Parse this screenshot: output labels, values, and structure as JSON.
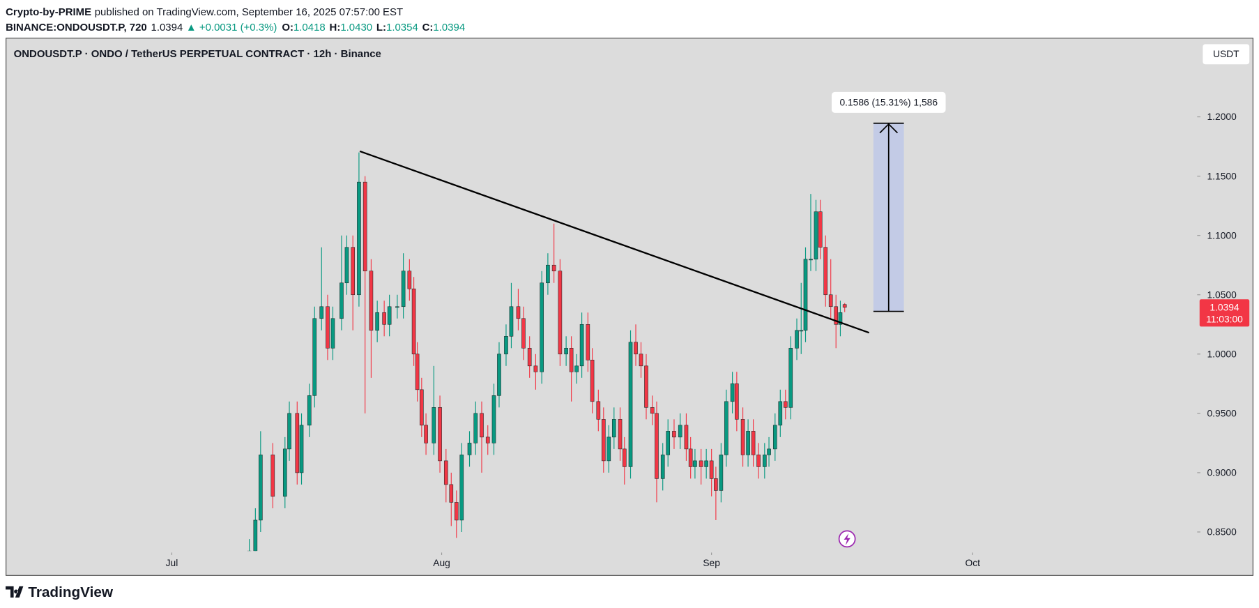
{
  "header": {
    "author": "Crypto-by-PRIME",
    "published": "published on TradingView.com, September 16, 2025 07:57:00 EST",
    "symbol": "BINANCE:ONDOUSDT.P, 720",
    "last": "1.0394",
    "change": "▲ +0.0031 (+0.3%)",
    "ohlc": [
      {
        "label": "O:",
        "value": "1.0418"
      },
      {
        "label": "H:",
        "value": "1.0430"
      },
      {
        "label": "L:",
        "value": "1.0354"
      },
      {
        "label": "C:",
        "value": "1.0394"
      }
    ]
  },
  "chart_data": {
    "type": "candlestick",
    "title": "ONDOUSDT.P · ONDO / TetherUS PERPETUAL CONTRACT · 12h · Binance",
    "currency": "USDT",
    "x": [
      8.9,
      9.6,
      10.2,
      11.6,
      13.0,
      13.5,
      14.4,
      14.9,
      15.8,
      16.4,
      17.2,
      17.9,
      18.5,
      19.5,
      20.1,
      20.8,
      21.5,
      22.2,
      22.9,
      23.6,
      24.4,
      25.0,
      25.9,
      26.6,
      27.3,
      27.8,
      28.2,
      28.7,
      29.2,
      30.1,
      30.8,
      31.5,
      32.1,
      32.7,
      33.3,
      34.2,
      34.9,
      35.6,
      36.3,
      37.0,
      37.6,
      38.4,
      39.0,
      39.8,
      40.4,
      41.1,
      41.8,
      42.5,
      43.2,
      43.9,
      44.6,
      45.3,
      45.9,
      46.5,
      47.1,
      47.8,
      48.3,
      49.0,
      49.6,
      50.2,
      50.8,
      51.5,
      52.0,
      52.7,
      53.3,
      53.9,
      54.5,
      55.2,
      55.7,
      56.4,
      57.0,
      57.7,
      58.4,
      59.1,
      59.6,
      60.1,
      60.8,
      61.4,
      62.0,
      62.5,
      63.1,
      63.7,
      64.4,
      64.9,
      65.6,
      66.2,
      66.8,
      67.4,
      68.1,
      68.6,
      69.3,
      69.9,
      70.5,
      71.1,
      71.8,
      72.3,
      72.8,
      73.4,
      74.0,
      74.5,
      75.1,
      75.7,
      76.3,
      76.8,
      77.3
    ],
    "open": [
      0.82,
      0.834,
      0.86,
      0.915,
      0.88,
      0.92,
      0.95,
      0.9,
      0.94,
      0.965,
      1.03,
      1.04,
      1.005,
      1.03,
      1.06,
      1.09,
      1.05,
      1.145,
      1.07,
      1.02,
      1.035,
      1.025,
      1.04,
      1.04,
      1.07,
      1.055,
      1.0,
      0.97,
      0.94,
      0.925,
      0.955,
      0.91,
      0.89,
      0.875,
      0.86,
      0.915,
      0.925,
      0.95,
      0.93,
      0.925,
      0.965,
      1.0,
      1.015,
      1.04,
      1.03,
      1.005,
      0.99,
      0.985,
      1.06,
      1.075,
      1.07,
      1.0,
      1.005,
      0.985,
      0.99,
      1.025,
      0.995,
      0.96,
      0.945,
      0.91,
      0.93,
      0.945,
      0.92,
      0.905,
      1.01,
      1.0,
      0.99,
      0.955,
      0.95,
      0.895,
      0.915,
      0.935,
      0.93,
      0.94,
      0.92,
      0.905,
      0.91,
      0.905,
      0.91,
      0.895,
      0.885,
      0.915,
      0.96,
      0.975,
      0.945,
      0.915,
      0.935,
      0.915,
      0.905,
      0.915,
      0.92,
      0.94,
      0.96,
      0.955,
      1.005,
      1.02,
      1.02,
      1.08,
      1.08,
      1.12,
      1.09,
      1.05,
      1.04,
      1.025,
      1.0418
    ],
    "high": [
      0.844,
      0.87,
      0.935,
      0.925,
      0.93,
      0.96,
      0.96,
      0.95,
      0.975,
      1.04,
      1.09,
      1.05,
      1.04,
      1.1,
      1.1,
      1.1,
      1.17,
      1.15,
      1.08,
      1.045,
      1.045,
      1.05,
      1.05,
      1.085,
      1.08,
      1.065,
      1.01,
      0.98,
      0.95,
      0.99,
      0.965,
      0.92,
      0.9,
      0.885,
      0.925,
      0.935,
      0.96,
      0.96,
      0.94,
      0.975,
      1.01,
      1.025,
      1.06,
      1.055,
      1.04,
      1.015,
      1.0,
      1.07,
      1.085,
      1.11,
      1.08,
      1.015,
      1.015,
      1.0,
      1.035,
      1.035,
      1.005,
      0.97,
      0.955,
      0.94,
      0.955,
      0.955,
      0.93,
      1.02,
      1.025,
      1.01,
      1.0,
      0.965,
      0.96,
      0.925,
      0.945,
      0.945,
      0.95,
      0.95,
      0.93,
      0.92,
      0.92,
      0.92,
      0.92,
      0.905,
      0.925,
      0.97,
      0.985,
      0.985,
      0.955,
      0.945,
      0.945,
      0.925,
      0.925,
      0.93,
      0.95,
      0.97,
      0.97,
      1.015,
      1.03,
      1.06,
      1.09,
      1.135,
      1.13,
      1.13,
      1.1,
      1.08,
      1.05,
      1.045,
      1.043
    ],
    "low": [
      0.81,
      0.824,
      0.85,
      0.87,
      0.87,
      0.91,
      0.89,
      0.89,
      0.93,
      0.955,
      1.02,
      0.995,
      0.995,
      1.02,
      1.05,
      1.02,
      1.04,
      0.95,
      0.98,
      1.01,
      1.015,
      1.015,
      1.03,
      1.03,
      1.045,
      0.99,
      0.96,
      0.93,
      0.915,
      0.915,
      0.9,
      0.875,
      0.855,
      0.845,
      0.85,
      0.905,
      0.915,
      0.9,
      0.915,
      0.915,
      0.955,
      0.99,
      1.005,
      1.02,
      0.995,
      0.98,
      0.97,
      0.975,
      1.05,
      1.06,
      0.99,
      0.99,
      0.96,
      0.975,
      0.98,
      0.985,
      0.95,
      0.935,
      0.9,
      0.9,
      0.92,
      0.91,
      0.89,
      0.895,
      0.99,
      0.98,
      0.945,
      0.94,
      0.875,
      0.885,
      0.905,
      0.92,
      0.92,
      0.91,
      0.895,
      0.895,
      0.89,
      0.895,
      0.88,
      0.86,
      0.875,
      0.905,
      0.95,
      0.935,
      0.905,
      0.905,
      0.905,
      0.895,
      0.895,
      0.905,
      0.91,
      0.93,
      0.945,
      0.945,
      0.995,
      1.0,
      1.01,
      1.07,
      1.07,
      1.08,
      1.04,
      1.03,
      1.005,
      1.015,
      1.0354
    ],
    "close": [
      0.834,
      0.86,
      0.915,
      0.88,
      0.92,
      0.95,
      0.9,
      0.94,
      0.965,
      1.03,
      1.04,
      1.005,
      1.03,
      1.06,
      1.09,
      1.05,
      1.145,
      1.07,
      1.02,
      1.035,
      1.025,
      1.04,
      1.04,
      1.07,
      1.055,
      1.0,
      0.97,
      0.94,
      0.925,
      0.955,
      0.91,
      0.89,
      0.875,
      0.86,
      0.915,
      0.925,
      0.95,
      0.93,
      0.925,
      0.965,
      1.0,
      1.015,
      1.04,
      1.03,
      1.005,
      0.99,
      0.985,
      1.06,
      1.075,
      1.07,
      1.0,
      1.005,
      0.985,
      0.99,
      1.025,
      0.995,
      0.96,
      0.945,
      0.91,
      0.93,
      0.945,
      0.92,
      0.905,
      1.01,
      1.0,
      0.99,
      0.955,
      0.95,
      0.895,
      0.915,
      0.935,
      0.93,
      0.94,
      0.92,
      0.905,
      0.91,
      0.905,
      0.91,
      0.895,
      0.885,
      0.915,
      0.96,
      0.975,
      0.945,
      0.915,
      0.935,
      0.915,
      0.905,
      0.915,
      0.92,
      0.94,
      0.96,
      0.955,
      1.005,
      1.02,
      1.02,
      1.08,
      1.08,
      1.12,
      1.09,
      1.05,
      1.04,
      1.025,
      1.035,
      1.0394
    ],
    "up_color": "#089981",
    "down_color": "#f23645",
    "xlim": [
      -19,
      117.7
    ],
    "ylim": [
      0.834,
      1.266
    ],
    "xticks": [
      {
        "value": 0,
        "label": "Jul"
      },
      {
        "value": 31,
        "label": "Aug"
      },
      {
        "value": 62,
        "label": "Sep"
      },
      {
        "value": 92,
        "label": "Oct"
      }
    ],
    "yticks": [
      {
        "value": 0.85,
        "label": "0.8500"
      },
      {
        "value": 0.9,
        "label": "0.9000"
      },
      {
        "value": 0.95,
        "label": "0.9500"
      },
      {
        "value": 1.0,
        "label": "1.0000"
      },
      {
        "value": 1.05,
        "label": "1.0500"
      },
      {
        "value": 1.1,
        "label": "1.1000"
      },
      {
        "value": 1.15,
        "label": "1.1500"
      },
      {
        "value": 1.2,
        "label": "1.2000"
      }
    ],
    "price_tag": {
      "label": "1.0394",
      "countdown": "11:03:00",
      "color": "#f23645"
    },
    "trendline": {
      "x": [
        21.6,
        80.1
      ],
      "y": [
        1.171,
        1.018
      ]
    },
    "measure": {
      "x": [
        80.6,
        84.1
      ],
      "y": [
        1.036,
        1.1946
      ],
      "label": "0.1586 (15.31%) 1,586"
    }
  },
  "footer": {
    "brand": "TradingView"
  }
}
